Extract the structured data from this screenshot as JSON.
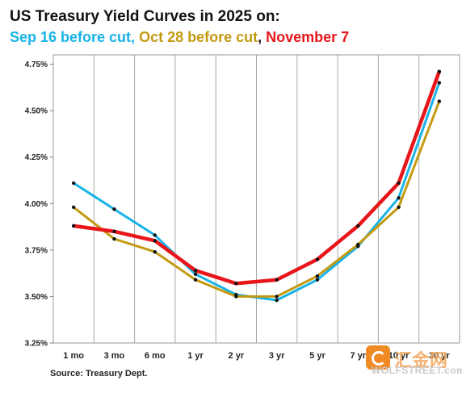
{
  "chart_data": {
    "type": "line",
    "title": "US Treasury Yield Curves in 2025 on:",
    "subtitle_parts": [
      {
        "text": "Sep 16 before cut",
        "color": "#19b3e6"
      },
      {
        "text": ", ",
        "color": "#19b3e6"
      },
      {
        "text": "Oct 28 before cut",
        "color": "#c49a12"
      },
      {
        "text": ", ",
        "color": "#111111"
      },
      {
        "text": "November 7",
        "color": "#e8161b"
      }
    ],
    "source": "Source: Treasury Dept.",
    "watermark": "WOLFSTREET.com",
    "watermark_cn": "汇金网",
    "categories": [
      "1 mo",
      "3 mo",
      "6 mo",
      "1 yr",
      "2 yr",
      "3 yr",
      "5 yr",
      "7 yr",
      "10 yr",
      "30 yr"
    ],
    "ylim": [
      3.25,
      4.8
    ],
    "yticks": [
      3.25,
      3.5,
      3.75,
      4.0,
      4.25,
      4.5,
      4.75
    ],
    "ytick_labels": [
      "3.25%",
      "3.50%",
      "3.75%",
      "4.00%",
      "4.25%",
      "4.50%",
      "4.75%"
    ],
    "grid": "vertical",
    "series": [
      {
        "name": "Sep 16 before cut",
        "color": "#19b3e6",
        "values": [
          4.11,
          3.97,
          3.83,
          3.62,
          3.51,
          3.48,
          3.59,
          3.77,
          4.03,
          4.65
        ]
      },
      {
        "name": "Oct 28 before cut",
        "color": "#c49a12",
        "values": [
          3.98,
          3.81,
          3.74,
          3.59,
          3.5,
          3.5,
          3.61,
          3.78,
          3.98,
          4.55
        ]
      },
      {
        "name": "November 7",
        "color": "#e8161b",
        "values": [
          3.88,
          3.85,
          3.8,
          3.64,
          3.57,
          3.59,
          3.7,
          3.88,
          4.11,
          4.71
        ]
      }
    ]
  }
}
